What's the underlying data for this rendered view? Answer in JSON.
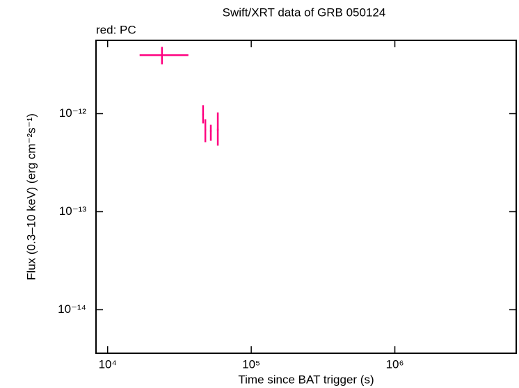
{
  "chart_data": {
    "type": "errorbar",
    "title": "Swift/XRT data of GRB 050124",
    "subtitle": "red: PC",
    "x_label": "Time since BAT trigger (s)",
    "y_label": "Flux (0.3–10 keV) (erg cm⁻²s⁻¹)",
    "xscale": "log",
    "yscale": "log",
    "xlim": [
      8300,
      7000000
    ],
    "ylim": [
      3.6e-15,
      5.6e-12
    ],
    "xticks": [
      {
        "value": 10000,
        "label": "10⁴"
      },
      {
        "value": 100000,
        "label": "10⁵"
      },
      {
        "value": 1000000,
        "label": "10⁶"
      }
    ],
    "yticks": [
      {
        "value": 1e-14,
        "label": "10⁻¹⁴"
      },
      {
        "value": 1e-13,
        "label": "10⁻¹³"
      },
      {
        "value": 1e-12,
        "label": "10⁻¹²"
      }
    ],
    "series": [
      {
        "color": "#ff0080",
        "x": [
          23900,
          46200,
          47900,
          52300,
          58500
        ],
        "x_low": [
          16700,
          45600,
          47300,
          51600,
          57700
        ],
        "x_high": [
          36500,
          46800,
          48500,
          53000,
          59300
        ],
        "values": [
          3.95e-12,
          9.8e-13,
          6.87e-13,
          6.65e-13,
          6.87e-13
        ],
        "y_low": [
          3.19e-12,
          7.96e-13,
          5.12e-13,
          5.29e-13,
          4.72e-13
        ],
        "y_high": [
          4.8e-12,
          1.22e-12,
          8.77e-13,
          7.7e-13,
          1.03e-12
        ]
      }
    ]
  }
}
